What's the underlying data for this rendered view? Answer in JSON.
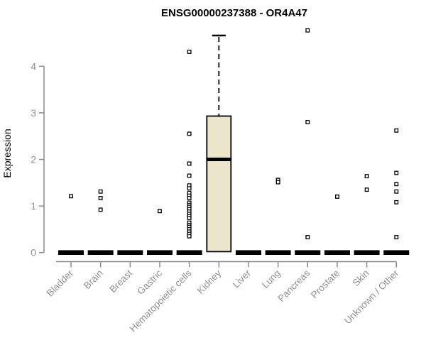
{
  "chart_data": {
    "type": "boxplot",
    "title": "ENSG00000237388 - OR4A47",
    "ylabel": "Expression",
    "xlabel": "",
    "ylim": [
      0,
      4.8
    ],
    "yticks": [
      0,
      1,
      2,
      3,
      4
    ],
    "grid": false,
    "legend": "none",
    "box_fill_color": "#ebe6cb",
    "box_line_color": "#000000",
    "axis_color": "#8a8a8a",
    "label_color": "#929292",
    "outlier_fill": "#ffffff",
    "categories": [
      "Bladder",
      "Brain",
      "Breast",
      "Gastric",
      "Hematopoietic cells",
      "Kidney",
      "Liver",
      "Lung",
      "Pancreas",
      "Prostate",
      "Skin",
      "Unknown / Other"
    ],
    "series": [
      {
        "category": "Bladder",
        "q1": 0,
        "median": 0,
        "q3": 0,
        "whisker_low": 0,
        "whisker_high": 0,
        "outliers": [
          1.21
        ]
      },
      {
        "category": "Brain",
        "q1": 0,
        "median": 0,
        "q3": 0,
        "whisker_low": 0,
        "whisker_high": 0,
        "outliers": [
          1.31,
          1.17,
          0.92
        ]
      },
      {
        "category": "Breast",
        "q1": 0,
        "median": 0,
        "q3": 0,
        "whisker_low": 0,
        "whisker_high": 0,
        "outliers": []
      },
      {
        "category": "Gastric",
        "q1": 0,
        "median": 0,
        "q3": 0,
        "whisker_low": 0,
        "whisker_high": 0,
        "outliers": [
          0.89
        ]
      },
      {
        "category": "Hematopoietic cells",
        "q1": 0,
        "median": 0,
        "q3": 0,
        "whisker_low": 0,
        "whisker_high": 0,
        "outliers": [
          4.31,
          2.55,
          1.91,
          1.65,
          1.44,
          1.38,
          1.28,
          1.22,
          1.17,
          1.07,
          1.02,
          0.98,
          0.93,
          0.88,
          0.83,
          0.78,
          0.74,
          0.64,
          0.59,
          0.55,
          0.5,
          0.45,
          0.4,
          0.35
        ]
      },
      {
        "category": "Kidney",
        "q1": 0.02,
        "median": 2.0,
        "q3": 2.93,
        "whisker_low": 0.02,
        "whisker_high": 4.66,
        "outliers": []
      },
      {
        "category": "Liver",
        "q1": 0,
        "median": 0,
        "q3": 0,
        "whisker_low": 0,
        "whisker_high": 0,
        "outliers": []
      },
      {
        "category": "Lung",
        "q1": 0,
        "median": 0,
        "q3": 0,
        "whisker_low": 0,
        "whisker_high": 0,
        "outliers": [
          1.56,
          1.51
        ]
      },
      {
        "category": "Pancreas",
        "q1": 0,
        "median": 0,
        "q3": 0,
        "whisker_low": 0,
        "whisker_high": 0,
        "outliers": [
          4.77,
          2.8,
          0.33
        ]
      },
      {
        "category": "Prostate",
        "q1": 0,
        "median": 0,
        "q3": 0,
        "whisker_low": 0,
        "whisker_high": 0,
        "outliers": [
          1.2
        ]
      },
      {
        "category": "Skin",
        "q1": 0,
        "median": 0,
        "q3": 0,
        "whisker_low": 0,
        "whisker_high": 0,
        "outliers": [
          1.64,
          1.35
        ]
      },
      {
        "category": "Unknown / Other",
        "q1": 0,
        "median": 0,
        "q3": 0,
        "whisker_low": 0,
        "whisker_high": 0,
        "outliers": [
          2.62,
          1.71,
          1.47,
          1.31,
          1.08,
          0.33
        ]
      }
    ]
  }
}
